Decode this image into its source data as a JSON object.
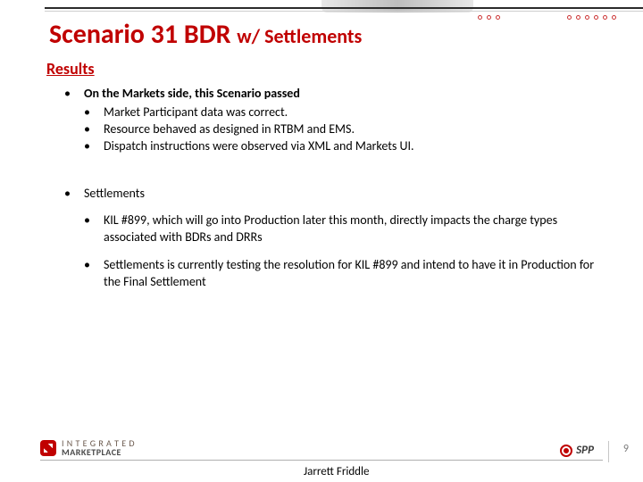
{
  "title_main": "Scenario 31 BDR ",
  "title_sub": "w/ Settlements",
  "subtitle": "Results",
  "bullet": "•",
  "markets": {
    "head": "On the Markets side, this Scenario passed",
    "items": [
      "Market Participant data  was correct.",
      "Resource behaved as designed in RTBM and EMS.",
      "Dispatch instructions were observed via XML and Markets UI."
    ]
  },
  "settlements": {
    "head": "Settlements",
    "items": [
      "KIL #899, which will go into Production later this month, directly impacts the charge types associated with BDRs and DRRs",
      "Settlements is currently testing the resolution for KIL #899 and intend to have it in Production for the Final Settlement"
    ]
  },
  "logo_left_line1": "I N T E G R A T E D",
  "logo_left_line2": "MARKETPLACE",
  "logo_right": "SPP",
  "presenter": "Jarrett Friddle",
  "page_number": "9"
}
